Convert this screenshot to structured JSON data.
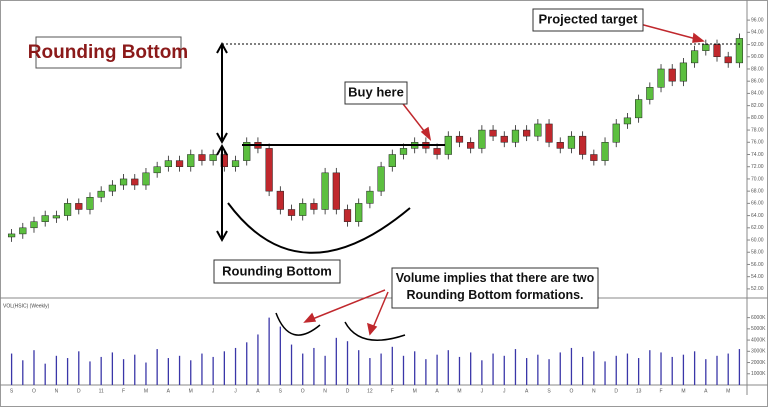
{
  "chart_data": {
    "type": "candlestick",
    "title": "Rounding Bottom",
    "annotations": [
      "Projected target",
      "Buy here",
      "Rounding Bottom",
      "Volume implies that there are two Rounding Bottom formations."
    ],
    "volume_label": "VOL(HSIC) (Weekly)",
    "categories": [
      "S",
      null,
      "O",
      null,
      "N",
      null,
      "D",
      null,
      "11",
      null,
      "F",
      null,
      "M",
      null,
      "A",
      null,
      "M",
      null,
      "J",
      null,
      "J",
      null,
      "A",
      null,
      "S",
      null,
      "O",
      null,
      "N",
      null,
      "D",
      null,
      "12",
      null,
      "F",
      null,
      "M",
      null,
      "A",
      null,
      "M",
      null,
      "J",
      null,
      "J",
      null,
      "A",
      null,
      "S",
      null,
      "O",
      null,
      "N",
      null,
      "D",
      null,
      "13",
      null,
      "F",
      null,
      "M",
      null,
      "A",
      null,
      "M",
      null
    ],
    "open": [
      60.5,
      61,
      62,
      63,
      63.6,
      64,
      66,
      65,
      67,
      68,
      69,
      70,
      69,
      71,
      72,
      73,
      72,
      74,
      73,
      74,
      72,
      73,
      76,
      75,
      68,
      65,
      64,
      66,
      65,
      71,
      65,
      63,
      66,
      68,
      72,
      74,
      75,
      76,
      75,
      74,
      77,
      76,
      75,
      78,
      77,
      76,
      78,
      77,
      79,
      76,
      75,
      77,
      74,
      73,
      76,
      79,
      80,
      83,
      85,
      88,
      86,
      89,
      91,
      92,
      90,
      89
    ],
    "high": [
      61.8,
      62.8,
      63.8,
      64.8,
      64.8,
      66.8,
      66.8,
      67.8,
      68.8,
      69.8,
      70.8,
      70.8,
      71.8,
      72.8,
      73.8,
      73.8,
      74.8,
      74.8,
      74.8,
      74.8,
      73.8,
      76.8,
      76.8,
      75.8,
      68.8,
      65.8,
      66.8,
      66.8,
      71.8,
      71.8,
      65.8,
      66.8,
      68.8,
      72.8,
      74.8,
      75.8,
      76.8,
      76.8,
      75.8,
      77.8,
      77.8,
      76.8,
      78.8,
      78.8,
      77.8,
      78.8,
      78.8,
      79.8,
      79.8,
      76.8,
      77.8,
      77.8,
      74.8,
      76.8,
      79.8,
      80.8,
      83.8,
      85.8,
      88.8,
      88.8,
      89.8,
      91.8,
      92.8,
      92.8,
      90.8,
      93.8
    ],
    "low": [
      59.7,
      60.2,
      61.2,
      62.2,
      62.8,
      63.2,
      64.2,
      64.2,
      66.2,
      67.2,
      68.2,
      68.2,
      68.2,
      70.2,
      71.2,
      71.2,
      71.2,
      72.2,
      72.2,
      71.2,
      71.2,
      72.2,
      74.2,
      67.2,
      64.2,
      63.2,
      63.2,
      64.2,
      64.2,
      64.2,
      62.2,
      62.2,
      65.2,
      67.2,
      71.2,
      73.2,
      74.2,
      74.2,
      73.2,
      73.2,
      75.2,
      74.2,
      74.2,
      76.2,
      75.2,
      75.2,
      76.2,
      76.2,
      75.2,
      74.2,
      74.2,
      73.2,
      72.2,
      72.2,
      75.2,
      78.2,
      79.2,
      82.2,
      84.2,
      85.2,
      85.2,
      88.2,
      90.2,
      89.2,
      88.2,
      88.2
    ],
    "close": [
      61,
      62,
      63,
      64,
      64,
      66,
      65,
      67,
      68,
      69,
      70,
      69,
      71,
      72,
      73,
      72,
      74,
      73,
      74,
      72,
      73,
      76,
      75,
      68,
      65,
      64,
      66,
      65,
      71,
      65,
      63,
      66,
      68,
      72,
      74,
      75,
      76,
      75,
      74,
      77,
      76,
      75,
      78,
      77,
      76,
      78,
      77,
      79,
      76,
      75,
      77,
      74,
      73,
      76,
      79,
      80,
      83,
      85,
      88,
      86,
      89,
      91,
      92,
      90,
      89,
      93
    ],
    "volume": [
      2800,
      2200,
      3100,
      1900,
      2600,
      2400,
      3000,
      2100,
      2500,
      2900,
      2300,
      2700,
      2000,
      3200,
      2400,
      2600,
      2200,
      2800,
      2500,
      3000,
      3300,
      3800,
      4500,
      6000,
      5200,
      3600,
      2800,
      3300,
      2600,
      4200,
      3900,
      3100,
      2400,
      2800,
      3400,
      2600,
      3000,
      2300,
      2700,
      3100,
      2500,
      2900,
      2200,
      2800,
      2600,
      3200,
      2400,
      2700,
      2300,
      2900,
      3300,
      2500,
      3000,
      2100,
      2600,
      2800,
      2400,
      3100,
      2900,
      2500,
      2700,
      3000,
      2300,
      2600,
      2800,
      3200
    ],
    "up_color": "#5cbf3f",
    "down_color": "#c0282d",
    "volume_color": "#3a36a8",
    "ylim": [
      51,
      97
    ],
    "yticks": [
      {
        "value": 96,
        "label": "96.00"
      },
      {
        "value": 94,
        "label": "94.00"
      },
      {
        "value": 92,
        "label": "92.00"
      },
      {
        "value": 90,
        "label": "90.00"
      },
      {
        "value": 88,
        "label": "88.00"
      },
      {
        "value": 86,
        "label": "86.00"
      },
      {
        "value": 84,
        "label": "84.00"
      },
      {
        "value": 82,
        "label": "82.00"
      },
      {
        "value": 80,
        "label": "80.00"
      },
      {
        "value": 78,
        "label": "78.00"
      },
      {
        "value": 76,
        "label": "76.00"
      },
      {
        "value": 74,
        "label": "74.00"
      },
      {
        "value": 72,
        "label": "72.00"
      },
      {
        "value": 70,
        "label": "70.00"
      },
      {
        "value": 68,
        "label": "68.00"
      },
      {
        "value": 66,
        "label": "66.00"
      },
      {
        "value": 64,
        "label": "64.00"
      },
      {
        "value": 62,
        "label": "62.00"
      },
      {
        "value": 60,
        "label": "60.00"
      },
      {
        "value": 58,
        "label": "58.00"
      },
      {
        "value": 56,
        "label": "56.00"
      },
      {
        "value": 54,
        "label": "54.00"
      },
      {
        "value": 52,
        "label": "52.00"
      }
    ],
    "y2lim": [
      0,
      6500
    ],
    "y2ticks": [
      {
        "value": 6000,
        "label": "6000K"
      },
      {
        "value": 5000,
        "label": "5000K"
      },
      {
        "value": 4000,
        "label": "4000K"
      },
      {
        "value": 3000,
        "label": "3000K"
      },
      {
        "value": 2000,
        "label": "2000K"
      },
      {
        "value": 1000,
        "label": "1000K"
      }
    ]
  }
}
